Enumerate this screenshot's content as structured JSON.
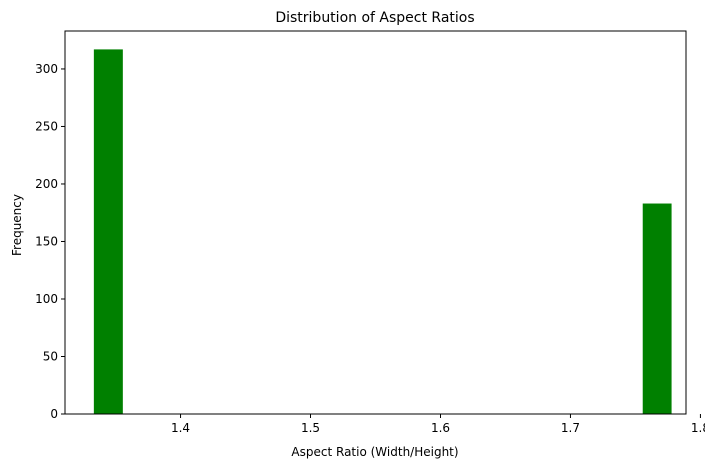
{
  "chart_data": {
    "type": "bar",
    "title": "Distribution of Aspect Ratios",
    "xlabel": "Aspect Ratio (Width/Height)",
    "ylabel": "Frequency",
    "xlim": [
      1.3111,
      1.7889
    ],
    "ylim": [
      0,
      333
    ],
    "x_ticks": [
      1.4,
      1.5,
      1.6,
      1.7,
      1.8
    ],
    "x_tick_labels": [
      "1.4",
      "1.5",
      "1.6",
      "1.7",
      "1.8"
    ],
    "y_ticks": [
      0,
      50,
      100,
      150,
      200,
      250,
      300
    ],
    "y_tick_labels": [
      "0",
      "50",
      "100",
      "150",
      "200",
      "250",
      "300"
    ],
    "bins": [
      {
        "x0": 1.3333,
        "x1": 1.3556,
        "value": 317
      },
      {
        "x0": 1.7556,
        "x1": 1.7778,
        "value": 183
      }
    ],
    "bar_color": "#008000",
    "grid": false,
    "legend": false
  }
}
